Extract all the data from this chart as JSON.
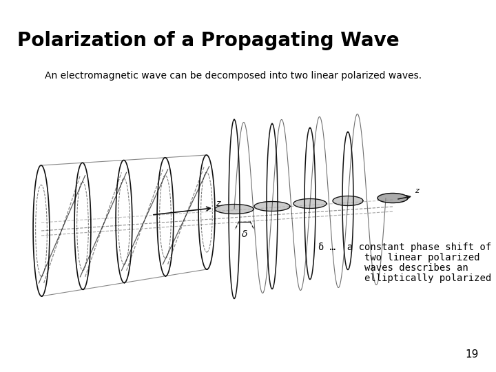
{
  "title": "Polarization of a Propagating Wave",
  "subtitle": "An electromagnetic wave can be decomposed into two linear polarized waves.",
  "annotation_line1": "δ …  a constant phase shift of",
  "annotation_line2": "        two linear polarized",
  "annotation_line3": "        waves describes an",
  "annotation_line4": "        elliptically polarized wave",
  "page_number": "19",
  "bg_color": "#ffffff",
  "title_fontsize": 20,
  "subtitle_fontsize": 10,
  "annotation_fontsize": 10,
  "page_fontsize": 11,
  "wave_color": "#111111",
  "dash_color": "#888888"
}
